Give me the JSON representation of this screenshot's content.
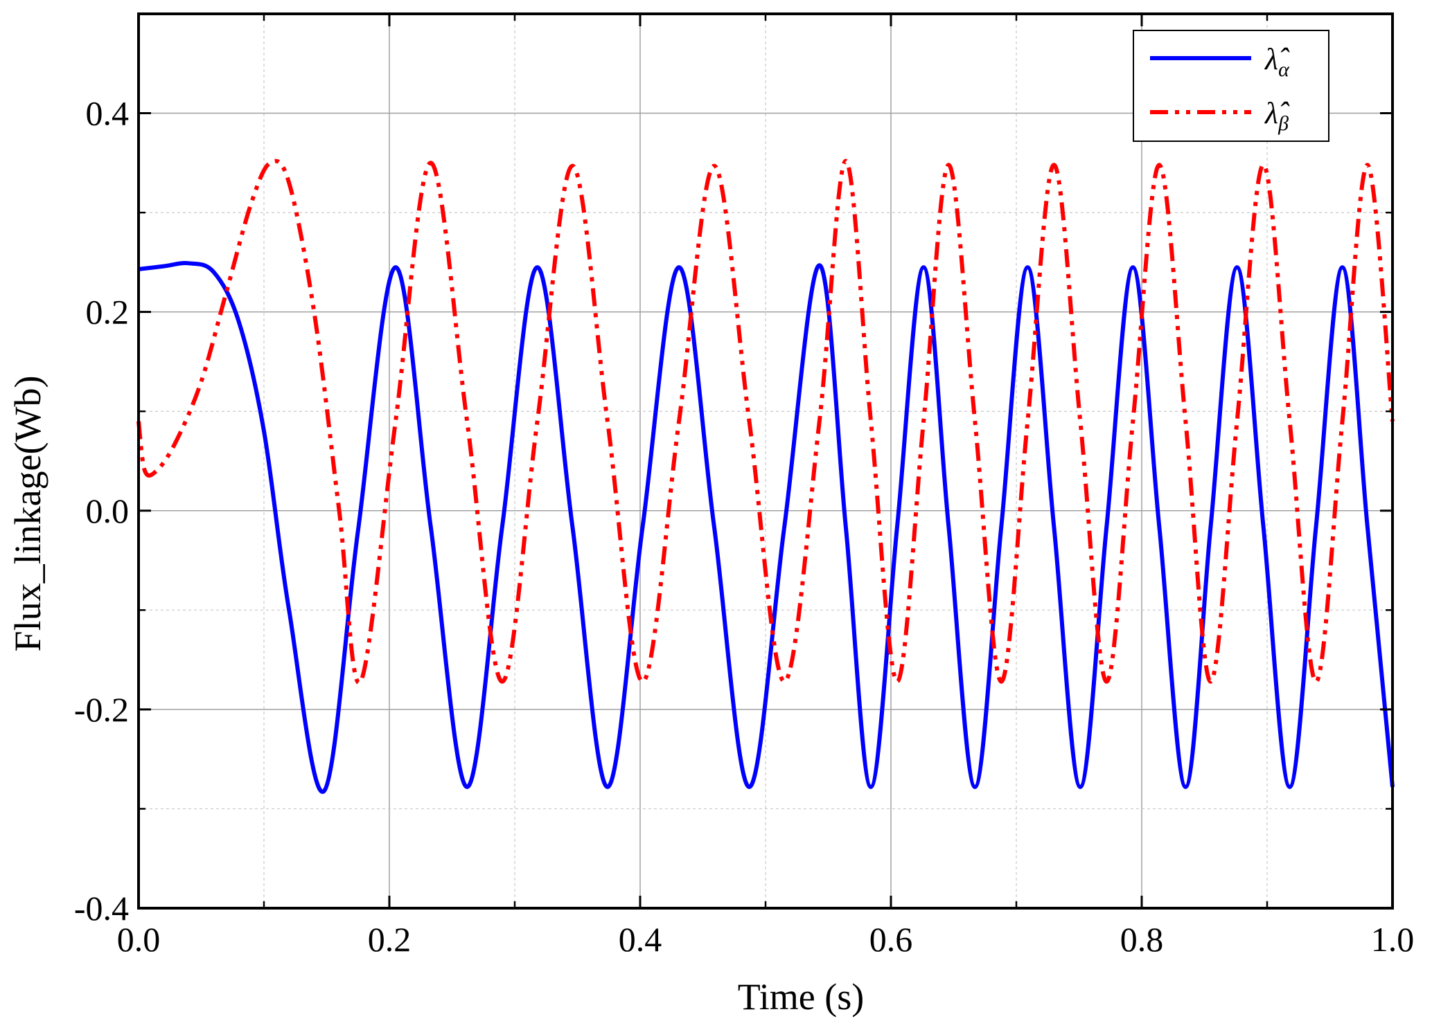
{
  "chart_data": {
    "type": "line",
    "title": "",
    "xlabel": "Time (s)",
    "ylabel": "Flux_linkage(Wb)",
    "xlim": [
      0.0,
      1.0
    ],
    "ylim": [
      -0.4,
      0.5
    ],
    "xticks": [
      0.0,
      0.2,
      0.4,
      0.6,
      0.8,
      1.0
    ],
    "xtick_labels": [
      "0.0",
      "0.2",
      "0.4",
      "0.6",
      "0.8",
      "1.0"
    ],
    "yticks": [
      -0.4,
      -0.2,
      0.0,
      0.2,
      0.4
    ],
    "ytick_labels": [
      "-0.4",
      "-0.2",
      "0.0",
      "0.2",
      "0.4"
    ],
    "grid": true,
    "legend_position": "top-right",
    "series": [
      {
        "name": "λ̂_α",
        "legend_symbol": "λ̂",
        "legend_subscript": "α",
        "color": "#0000ff",
        "style": "solid",
        "x": [
          0.0,
          0.02,
          0.04,
          0.06,
          0.08,
          0.1,
          0.12,
          0.148,
          0.175,
          0.205,
          0.233,
          0.262,
          0.29,
          0.318,
          0.346,
          0.374,
          0.402,
          0.431,
          0.459,
          0.487,
          0.515,
          0.543,
          0.564,
          0.584,
          0.605,
          0.626,
          0.646,
          0.667,
          0.688,
          0.709,
          0.73,
          0.751,
          0.772,
          0.793,
          0.814,
          0.835,
          0.855,
          0.876,
          0.897,
          0.918,
          0.939,
          0.96,
          0.98,
          1.0
        ],
        "y": [
          0.243,
          0.246,
          0.249,
          0.24,
          0.19,
          0.08,
          -0.1,
          -0.282,
          -0.02,
          0.245,
          -0.016,
          -0.278,
          -0.016,
          0.245,
          -0.016,
          -0.278,
          -0.016,
          0.245,
          -0.016,
          -0.278,
          -0.016,
          0.247,
          -0.016,
          -0.278,
          -0.016,
          0.245,
          -0.016,
          -0.278,
          -0.016,
          0.245,
          -0.016,
          -0.278,
          -0.016,
          0.245,
          -0.016,
          -0.278,
          -0.016,
          0.245,
          -0.016,
          -0.278,
          -0.016,
          0.245,
          -0.016,
          -0.278
        ]
      },
      {
        "name": "λ̂_β",
        "legend_symbol": "λ̂",
        "legend_subscript": "β",
        "color": "#ff0000",
        "style": "dash-dot-dot",
        "x": [
          0.0,
          0.005,
          0.015,
          0.03,
          0.05,
          0.07,
          0.09,
          0.105,
          0.12,
          0.14,
          0.16,
          0.177,
          0.205,
          0.233,
          0.262,
          0.29,
          0.318,
          0.346,
          0.374,
          0.402,
          0.431,
          0.459,
          0.487,
          0.515,
          0.543,
          0.564,
          0.584,
          0.605,
          0.626,
          0.646,
          0.667,
          0.688,
          0.709,
          0.73,
          0.751,
          0.772,
          0.793,
          0.814,
          0.835,
          0.855,
          0.876,
          0.897,
          0.918,
          0.939,
          0.96,
          0.98,
          1.0
        ],
        "y": [
          0.09,
          0.04,
          0.041,
          0.07,
          0.13,
          0.22,
          0.31,
          0.35,
          0.33,
          0.2,
          0.0,
          -0.172,
          0.09,
          0.35,
          0.09,
          -0.172,
          0.09,
          0.347,
          0.09,
          -0.172,
          0.09,
          0.347,
          0.09,
          -0.172,
          0.09,
          0.352,
          0.09,
          -0.172,
          0.09,
          0.348,
          0.09,
          -0.172,
          0.09,
          0.348,
          0.09,
          -0.172,
          0.09,
          0.348,
          0.09,
          -0.172,
          0.09,
          0.348,
          0.09,
          -0.172,
          0.09,
          0.348,
          0.09
        ]
      }
    ]
  }
}
